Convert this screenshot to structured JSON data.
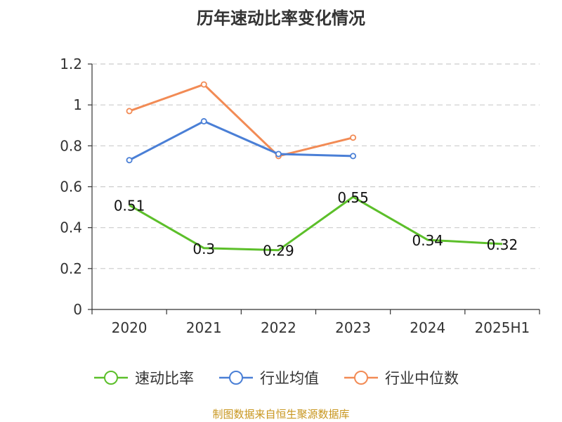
{
  "chart_data": {
    "type": "line",
    "title": "历年速动比率变化情况",
    "xlabel": "",
    "ylabel": "",
    "categories": [
      "2020",
      "2021",
      "2022",
      "2023",
      "2024",
      "2025H1"
    ],
    "ylim": [
      0,
      1.2
    ],
    "yticks": [
      "0",
      "0.2",
      "0.4",
      "0.6",
      "0.8",
      "1",
      "1.2"
    ],
    "grid": true,
    "legend_position": "bottom",
    "series": [
      {
        "name": "速动比率",
        "color": "#5cbf2a",
        "values": [
          0.51,
          0.3,
          0.29,
          0.55,
          0.34,
          0.32
        ],
        "labels": [
          "0.51",
          "0.3",
          "0.29",
          "0.55",
          "0.34",
          "0.32"
        ],
        "markers": false
      },
      {
        "name": "行业均值",
        "color": "#4a7fd6",
        "values": [
          0.73,
          0.92,
          0.76,
          0.75,
          null,
          null
        ],
        "labels": [],
        "markers": true
      },
      {
        "name": "行业中位数",
        "color": "#f28b55",
        "values": [
          0.97,
          1.1,
          0.75,
          0.84,
          null,
          null
        ],
        "labels": [],
        "markers": true
      }
    ]
  },
  "footer": {
    "source": "制图数据来自恒生聚源数据库"
  }
}
